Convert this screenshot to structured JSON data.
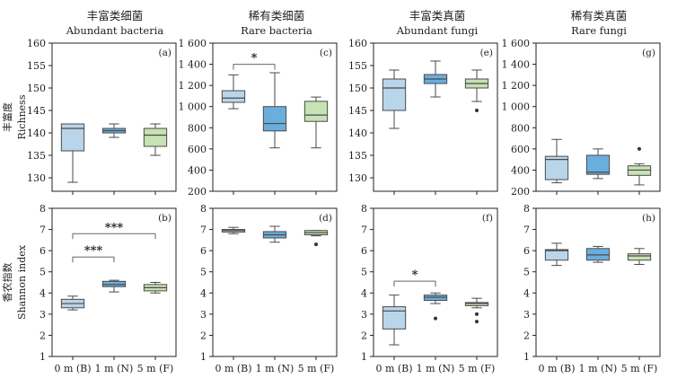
{
  "figure": {
    "row_labels": [
      {
        "zh": "丰富度",
        "en": "Richness"
      },
      {
        "zh": "香农指数",
        "en": "Shannon index"
      }
    ],
    "columns": [
      {
        "zh": "丰富类细菌",
        "en": "Abundant bacteria"
      },
      {
        "zh": "稀有类细菌",
        "en": "Rare bacteria"
      },
      {
        "zh": "丰富类真菌",
        "en": "Abundant fungi"
      },
      {
        "zh": "稀有类真菌",
        "en": "Rare fungi"
      }
    ],
    "categories": [
      "0 m (B)",
      "1 m (N)",
      "5 m (F)"
    ],
    "colors": {
      "B": "#b9d5ea",
      "N": "#6aaedd",
      "F": "#c7e2b4",
      "line": "#4a4a4a"
    }
  },
  "chart_data": [
    {
      "type": "box",
      "panel": "(a)",
      "ylim": [
        127,
        160
      ],
      "yticks": [
        "130",
        "135",
        "140",
        "145",
        "150",
        "155",
        "160"
      ],
      "ytick_values": [
        130,
        135,
        140,
        145,
        150,
        155,
        160
      ],
      "boxes": [
        {
          "category": "0 m (B)",
          "min": 129,
          "q1": 136,
          "median": 141,
          "q3": 142,
          "max": 142,
          "outliers": []
        },
        {
          "category": "1 m (N)",
          "min": 139,
          "q1": 140,
          "median": 140.5,
          "q3": 141,
          "max": 142,
          "outliers": []
        },
        {
          "category": "5 m (F)",
          "min": 135,
          "q1": 137,
          "median": 139.5,
          "q3": 141,
          "max": 142,
          "outliers": []
        }
      ],
      "significance": []
    },
    {
      "type": "box",
      "panel": "(c)",
      "ylim": [
        200,
        1600
      ],
      "yticks": [
        "200",
        "400",
        "600",
        "800",
        "1 000",
        "1 200",
        "1 400",
        "1 600"
      ],
      "ytick_values": [
        200,
        400,
        600,
        800,
        1000,
        1200,
        1400,
        1600
      ],
      "boxes": [
        {
          "category": "0 m (B)",
          "min": 980,
          "q1": 1040,
          "median": 1080,
          "q3": 1150,
          "max": 1300,
          "outliers": []
        },
        {
          "category": "1 m (N)",
          "min": 610,
          "q1": 770,
          "median": 840,
          "q3": 1000,
          "max": 1320,
          "outliers": []
        },
        {
          "category": "5 m (F)",
          "min": 610,
          "q1": 860,
          "median": 920,
          "q3": 1050,
          "max": 1090,
          "outliers": []
        }
      ],
      "significance": [
        {
          "from": 0,
          "to": 1,
          "label": "*",
          "level": 0
        }
      ]
    },
    {
      "type": "box",
      "panel": "(e)",
      "ylim": [
        127,
        160
      ],
      "yticks": [
        "130",
        "135",
        "140",
        "145",
        "150",
        "155",
        "160"
      ],
      "ytick_values": [
        130,
        135,
        140,
        145,
        150,
        155,
        160
      ],
      "boxes": [
        {
          "category": "0 m (B)",
          "min": 141,
          "q1": 145,
          "median": 150,
          "q3": 152,
          "max": 154,
          "outliers": []
        },
        {
          "category": "1 m (N)",
          "min": 148,
          "q1": 151,
          "median": 152,
          "q3": 153,
          "max": 156,
          "outliers": []
        },
        {
          "category": "5 m (F)",
          "min": 147,
          "q1": 150,
          "median": 151,
          "q3": 152,
          "max": 154,
          "outliers": [
            145
          ]
        }
      ],
      "significance": []
    },
    {
      "type": "box",
      "panel": "(g)",
      "ylim": [
        200,
        1600
      ],
      "yticks": [
        "200",
        "400",
        "600",
        "800",
        "1 000",
        "1 200",
        "1 400",
        "1 600"
      ],
      "ytick_values": [
        200,
        400,
        600,
        800,
        1000,
        1200,
        1400,
        1600
      ],
      "boxes": [
        {
          "category": "0 m (B)",
          "min": 280,
          "q1": 310,
          "median": 500,
          "q3": 530,
          "max": 690,
          "outliers": []
        },
        {
          "category": "1 m (N)",
          "min": 320,
          "q1": 360,
          "median": 380,
          "q3": 540,
          "max": 600,
          "outliers": []
        },
        {
          "category": "5 m (F)",
          "min": 260,
          "q1": 350,
          "median": 400,
          "q3": 440,
          "max": 460,
          "outliers": [
            600
          ]
        }
      ],
      "significance": []
    },
    {
      "type": "box",
      "panel": "(b)",
      "ylim": [
        1,
        8
      ],
      "yticks": [
        "1",
        "2",
        "3",
        "4",
        "5",
        "6",
        "7",
        "8"
      ],
      "ytick_values": [
        1,
        2,
        3,
        4,
        5,
        6,
        7,
        8
      ],
      "boxes": [
        {
          "category": "0 m (B)",
          "min": 3.2,
          "q1": 3.3,
          "median": 3.5,
          "q3": 3.7,
          "max": 3.85,
          "outliers": []
        },
        {
          "category": "1 m (N)",
          "min": 4.05,
          "q1": 4.3,
          "median": 4.4,
          "q3": 4.55,
          "max": 4.6,
          "outliers": []
        },
        {
          "category": "5 m (F)",
          "min": 4.0,
          "q1": 4.1,
          "median": 4.25,
          "q3": 4.4,
          "max": 4.5,
          "outliers": []
        }
      ],
      "significance": [
        {
          "from": 0,
          "to": 1,
          "label": "***",
          "level": 0
        },
        {
          "from": 0,
          "to": 2,
          "label": "***",
          "level": 1
        }
      ]
    },
    {
      "type": "box",
      "panel": "(d)",
      "ylim": [
        1,
        8
      ],
      "yticks": [
        "1",
        "2",
        "3",
        "4",
        "5",
        "6",
        "7",
        "8"
      ],
      "ytick_values": [
        1,
        2,
        3,
        4,
        5,
        6,
        7,
        8
      ],
      "boxes": [
        {
          "category": "0 m (B)",
          "min": 6.8,
          "q1": 6.88,
          "median": 6.95,
          "q3": 7.0,
          "max": 7.1,
          "outliers": []
        },
        {
          "category": "1 m (N)",
          "min": 6.4,
          "q1": 6.6,
          "median": 6.75,
          "q3": 6.9,
          "max": 7.15,
          "outliers": []
        },
        {
          "category": "5 m (F)",
          "min": 6.7,
          "q1": 6.75,
          "median": 6.85,
          "q3": 6.95,
          "max": 6.95,
          "outliers": [
            6.3
          ]
        }
      ],
      "significance": []
    },
    {
      "type": "box",
      "panel": "(f)",
      "ylim": [
        1,
        8
      ],
      "yticks": [
        "1",
        "2",
        "3",
        "4",
        "5",
        "6",
        "7",
        "8"
      ],
      "ytick_values": [
        1,
        2,
        3,
        4,
        5,
        6,
        7,
        8
      ],
      "boxes": [
        {
          "category": "0 m (B)",
          "min": 1.55,
          "q1": 2.3,
          "median": 3.15,
          "q3": 3.35,
          "max": 3.9,
          "outliers": []
        },
        {
          "category": "1 m (N)",
          "min": 3.5,
          "q1": 3.65,
          "median": 3.8,
          "q3": 3.9,
          "max": 4.0,
          "outliers": [
            2.8
          ]
        },
        {
          "category": "5 m (F)",
          "min": 3.3,
          "q1": 3.4,
          "median": 3.5,
          "q3": 3.55,
          "max": 3.75,
          "outliers": [
            3.0,
            2.65
          ]
        }
      ],
      "significance": [
        {
          "from": 0,
          "to": 1,
          "label": "*",
          "level": 0
        }
      ]
    },
    {
      "type": "box",
      "panel": "(h)",
      "ylim": [
        1,
        8
      ],
      "yticks": [
        "1",
        "2",
        "3",
        "4",
        "5",
        "6",
        "7",
        "8"
      ],
      "ytick_values": [
        1,
        2,
        3,
        4,
        5,
        6,
        7,
        8
      ],
      "boxes": [
        {
          "category": "0 m (B)",
          "min": 5.3,
          "q1": 5.55,
          "median": 6.0,
          "q3": 6.05,
          "max": 6.35,
          "outliers": []
        },
        {
          "category": "1 m (N)",
          "min": 5.45,
          "q1": 5.55,
          "median": 5.8,
          "q3": 6.1,
          "max": 6.2,
          "outliers": []
        },
        {
          "category": "5 m (F)",
          "min": 5.35,
          "q1": 5.55,
          "median": 5.75,
          "q3": 5.85,
          "max": 6.1,
          "outliers": []
        }
      ],
      "significance": []
    }
  ]
}
